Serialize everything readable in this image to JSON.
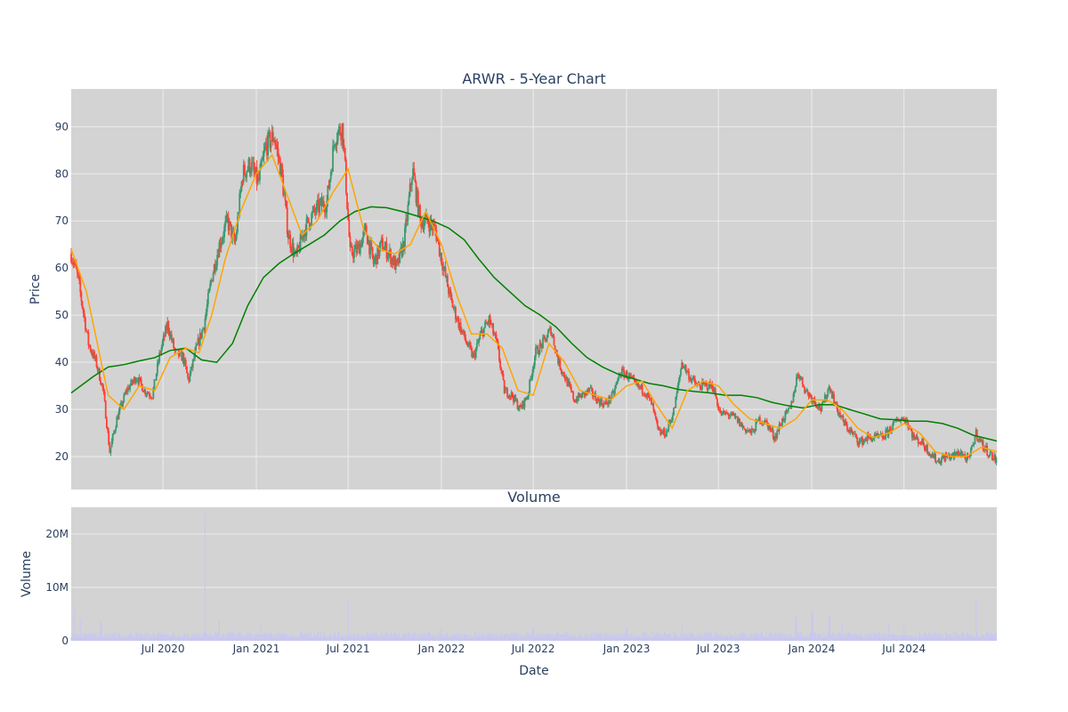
{
  "chart_data": [
    {
      "type": "candlestick",
      "title": "ARWR - 5-Year Chart",
      "xlabel": "Date",
      "ylabel": "Price",
      "x_range": [
        "2020-01-02",
        "2024-12-31"
      ],
      "ylim": [
        13,
        98
      ],
      "y_ticks": [
        20,
        30,
        40,
        50,
        60,
        70,
        80,
        90
      ],
      "x_ticks": [
        {
          "date": "2020-07-01",
          "label": "Jul 2020"
        },
        {
          "date": "2021-01-01",
          "label": "Jan 2021"
        },
        {
          "date": "2021-07-01",
          "label": "Jul 2021"
        },
        {
          "date": "2022-01-01",
          "label": "Jan 2022"
        },
        {
          "date": "2022-07-01",
          "label": "Jul 2022"
        },
        {
          "date": "2023-01-01",
          "label": "Jan 2023"
        },
        {
          "date": "2023-07-01",
          "label": "Jul 2023"
        },
        {
          "date": "2024-01-01",
          "label": "Jan 2024"
        },
        {
          "date": "2024-07-01",
          "label": "Jul 2024"
        }
      ],
      "grid": true,
      "background": "#d3d3d3",
      "colors": {
        "increasing": "#3d9970",
        "decreasing": "#ff4136",
        "ma_short": "#ffa500",
        "ma_long": "#008000"
      },
      "price_path": [
        [
          "2020-01-02",
          63
        ],
        [
          "2020-01-15",
          58
        ],
        [
          "2020-02-05",
          44
        ],
        [
          "2020-02-20",
          40
        ],
        [
          "2020-03-05",
          34
        ],
        [
          "2020-03-18",
          21
        ],
        [
          "2020-04-01",
          28
        ],
        [
          "2020-04-20",
          34
        ],
        [
          "2020-05-10",
          37
        ],
        [
          "2020-05-25",
          34
        ],
        [
          "2020-06-10",
          33
        ],
        [
          "2020-06-25",
          42
        ],
        [
          "2020-07-10",
          48
        ],
        [
          "2020-07-25",
          42
        ],
        [
          "2020-08-10",
          41
        ],
        [
          "2020-08-20",
          36
        ],
        [
          "2020-09-05",
          43
        ],
        [
          "2020-09-20",
          48
        ],
        [
          "2020-10-05",
          58
        ],
        [
          "2020-10-20",
          65
        ],
        [
          "2020-11-05",
          70
        ],
        [
          "2020-11-20",
          65
        ],
        [
          "2020-12-05",
          80
        ],
        [
          "2020-12-20",
          82
        ],
        [
          "2021-01-05",
          78
        ],
        [
          "2021-01-20",
          86
        ],
        [
          "2021-02-05",
          88
        ],
        [
          "2021-02-20",
          80
        ],
        [
          "2021-03-05",
          67
        ],
        [
          "2021-03-20",
          62
        ],
        [
          "2021-04-05",
          68
        ],
        [
          "2021-04-20",
          71
        ],
        [
          "2021-05-05",
          73
        ],
        [
          "2021-05-20",
          74
        ],
        [
          "2021-06-05",
          88
        ],
        [
          "2021-06-20",
          90
        ],
        [
          "2021-07-05",
          63
        ],
        [
          "2021-07-20",
          64
        ],
        [
          "2021-08-05",
          68
        ],
        [
          "2021-08-20",
          61
        ],
        [
          "2021-09-05",
          65
        ],
        [
          "2021-09-20",
          63
        ],
        [
          "2021-10-05",
          60
        ],
        [
          "2021-10-20",
          66
        ],
        [
          "2021-11-05",
          81
        ],
        [
          "2021-11-20",
          70
        ],
        [
          "2021-12-05",
          70
        ],
        [
          "2021-12-20",
          68
        ],
        [
          "2022-01-05",
          60
        ],
        [
          "2022-01-20",
          53
        ],
        [
          "2022-02-05",
          48
        ],
        [
          "2022-02-20",
          44
        ],
        [
          "2022-03-05",
          41
        ],
        [
          "2022-03-20",
          46
        ],
        [
          "2022-04-05",
          49
        ],
        [
          "2022-04-20",
          44
        ],
        [
          "2022-05-05",
          34
        ],
        [
          "2022-05-20",
          33
        ],
        [
          "2022-06-05",
          30
        ],
        [
          "2022-06-20",
          33
        ],
        [
          "2022-07-05",
          42
        ],
        [
          "2022-07-20",
          44
        ],
        [
          "2022-08-05",
          47
        ],
        [
          "2022-08-20",
          40
        ],
        [
          "2022-09-05",
          36
        ],
        [
          "2022-09-20",
          32
        ],
        [
          "2022-10-05",
          33
        ],
        [
          "2022-10-20",
          34
        ],
        [
          "2022-11-05",
          32
        ],
        [
          "2022-11-20",
          31
        ],
        [
          "2022-12-05",
          33
        ],
        [
          "2022-12-20",
          38
        ],
        [
          "2023-01-05",
          37
        ],
        [
          "2023-01-20",
          35
        ],
        [
          "2023-02-05",
          34
        ],
        [
          "2023-02-20",
          31
        ],
        [
          "2023-03-05",
          25
        ],
        [
          "2023-03-20",
          25
        ],
        [
          "2023-04-05",
          30
        ],
        [
          "2023-04-20",
          40
        ],
        [
          "2023-05-05",
          37
        ],
        [
          "2023-05-20",
          35
        ],
        [
          "2023-06-05",
          35
        ],
        [
          "2023-06-20",
          35
        ],
        [
          "2023-07-05",
          29
        ],
        [
          "2023-07-20",
          29
        ],
        [
          "2023-08-05",
          28
        ],
        [
          "2023-08-20",
          26
        ],
        [
          "2023-09-05",
          25
        ],
        [
          "2023-09-20",
          28
        ],
        [
          "2023-10-05",
          27
        ],
        [
          "2023-10-20",
          24
        ],
        [
          "2023-11-05",
          28
        ],
        [
          "2023-11-20",
          30
        ],
        [
          "2023-12-05",
          38
        ],
        [
          "2023-12-20",
          34
        ],
        [
          "2024-01-05",
          32
        ],
        [
          "2024-01-20",
          30
        ],
        [
          "2024-02-05",
          35
        ],
        [
          "2024-02-20",
          30
        ],
        [
          "2024-03-05",
          27
        ],
        [
          "2024-03-20",
          25
        ],
        [
          "2024-04-05",
          23
        ],
        [
          "2024-04-20",
          24
        ],
        [
          "2024-05-05",
          24
        ],
        [
          "2024-05-20",
          24
        ],
        [
          "2024-06-05",
          26
        ],
        [
          "2024-06-20",
          28
        ],
        [
          "2024-07-05",
          28
        ],
        [
          "2024-07-20",
          24
        ],
        [
          "2024-08-05",
          23
        ],
        [
          "2024-08-20",
          21
        ],
        [
          "2024-09-05",
          19
        ],
        [
          "2024-09-20",
          20
        ],
        [
          "2024-10-05",
          20
        ],
        [
          "2024-10-20",
          21
        ],
        [
          "2024-11-05",
          19
        ],
        [
          "2024-11-20",
          25
        ],
        [
          "2024-12-05",
          22
        ],
        [
          "2024-12-31",
          19
        ]
      ],
      "ma_short": [
        [
          "2020-01-02",
          64
        ],
        [
          "2020-02-01",
          55
        ],
        [
          "2020-03-15",
          33
        ],
        [
          "2020-04-15",
          30
        ],
        [
          "2020-05-15",
          35
        ],
        [
          "2020-06-15",
          34
        ],
        [
          "2020-07-15",
          41
        ],
        [
          "2020-08-15",
          43
        ],
        [
          "2020-09-10",
          42
        ],
        [
          "2020-10-05",
          50
        ],
        [
          "2020-11-01",
          62
        ],
        [
          "2020-12-01",
          72
        ],
        [
          "2021-01-01",
          80
        ],
        [
          "2021-02-01",
          84
        ],
        [
          "2021-03-01",
          76
        ],
        [
          "2021-04-01",
          67
        ],
        [
          "2021-05-01",
          70
        ],
        [
          "2021-06-01",
          76
        ],
        [
          "2021-07-01",
          81
        ],
        [
          "2021-08-01",
          68
        ],
        [
          "2021-09-01",
          64
        ],
        [
          "2021-10-01",
          63
        ],
        [
          "2021-11-01",
          65
        ],
        [
          "2021-12-01",
          72
        ],
        [
          "2022-01-01",
          65
        ],
        [
          "2022-02-01",
          54
        ],
        [
          "2022-03-01",
          46
        ],
        [
          "2022-04-01",
          46
        ],
        [
          "2022-05-01",
          43
        ],
        [
          "2022-06-01",
          34
        ],
        [
          "2022-07-01",
          33
        ],
        [
          "2022-08-01",
          44
        ],
        [
          "2022-09-01",
          40
        ],
        [
          "2022-10-01",
          34
        ],
        [
          "2022-11-01",
          33
        ],
        [
          "2022-12-01",
          32
        ],
        [
          "2023-01-01",
          35
        ],
        [
          "2023-02-01",
          36
        ],
        [
          "2023-03-01",
          31
        ],
        [
          "2023-04-01",
          26
        ],
        [
          "2023-05-01",
          34
        ],
        [
          "2023-06-01",
          36
        ],
        [
          "2023-07-01",
          35
        ],
        [
          "2023-08-01",
          31
        ],
        [
          "2023-09-01",
          28
        ],
        [
          "2023-10-01",
          27
        ],
        [
          "2023-11-01",
          26
        ],
        [
          "2023-12-01",
          28
        ],
        [
          "2024-01-01",
          32
        ],
        [
          "2024-02-01",
          32
        ],
        [
          "2024-03-01",
          30
        ],
        [
          "2024-04-01",
          26
        ],
        [
          "2024-05-01",
          24
        ],
        [
          "2024-06-01",
          25
        ],
        [
          "2024-07-01",
          27
        ],
        [
          "2024-08-01",
          25
        ],
        [
          "2024-09-01",
          21
        ],
        [
          "2024-10-01",
          20
        ],
        [
          "2024-11-01",
          20
        ],
        [
          "2024-12-01",
          22
        ],
        [
          "2024-12-31",
          21
        ]
      ],
      "ma_long": [
        [
          "2020-01-02",
          33.5
        ],
        [
          "2020-02-15",
          37
        ],
        [
          "2020-03-15",
          39
        ],
        [
          "2020-04-15",
          39.5
        ],
        [
          "2020-05-15",
          40.3
        ],
        [
          "2020-06-15",
          41
        ],
        [
          "2020-07-15",
          42.5
        ],
        [
          "2020-08-15",
          43
        ],
        [
          "2020-09-15",
          40.5
        ],
        [
          "2020-10-15",
          40
        ],
        [
          "2020-11-15",
          44
        ],
        [
          "2020-12-15",
          52
        ],
        [
          "2021-01-15",
          58
        ],
        [
          "2021-02-15",
          61
        ],
        [
          "2021-03-15",
          63
        ],
        [
          "2021-04-15",
          65
        ],
        [
          "2021-05-15",
          67
        ],
        [
          "2021-06-15",
          70
        ],
        [
          "2021-07-15",
          72
        ],
        [
          "2021-08-15",
          73
        ],
        [
          "2021-09-15",
          72.8
        ],
        [
          "2021-10-15",
          72
        ],
        [
          "2021-11-15",
          71
        ],
        [
          "2021-12-15",
          70
        ],
        [
          "2022-01-15",
          68.5
        ],
        [
          "2022-02-15",
          66
        ],
        [
          "2022-03-15",
          62
        ],
        [
          "2022-04-15",
          58
        ],
        [
          "2022-05-15",
          55
        ],
        [
          "2022-06-15",
          52
        ],
        [
          "2022-07-15",
          50
        ],
        [
          "2022-08-15",
          47.5
        ],
        [
          "2022-09-15",
          44
        ],
        [
          "2022-10-15",
          41
        ],
        [
          "2022-11-15",
          39
        ],
        [
          "2022-12-15",
          37.5
        ],
        [
          "2023-01-15",
          36.5
        ],
        [
          "2023-02-15",
          35.5
        ],
        [
          "2023-03-15",
          35
        ],
        [
          "2023-04-15",
          34.2
        ],
        [
          "2023-05-15",
          33.8
        ],
        [
          "2023-06-15",
          33.5
        ],
        [
          "2023-07-15",
          33
        ],
        [
          "2023-08-15",
          33
        ],
        [
          "2023-09-15",
          32.5
        ],
        [
          "2023-10-15",
          31.5
        ],
        [
          "2023-11-15",
          30.8
        ],
        [
          "2023-12-15",
          30.3
        ],
        [
          "2024-01-15",
          31
        ],
        [
          "2024-02-15",
          31
        ],
        [
          "2024-03-15",
          30
        ],
        [
          "2024-04-15",
          29
        ],
        [
          "2024-05-15",
          28
        ],
        [
          "2024-06-15",
          27.8
        ],
        [
          "2024-07-15",
          27.5
        ],
        [
          "2024-08-15",
          27.5
        ],
        [
          "2024-09-15",
          27
        ],
        [
          "2024-10-15",
          26
        ],
        [
          "2024-11-15",
          24.5
        ],
        [
          "2024-12-31",
          23.3
        ]
      ]
    },
    {
      "type": "bar",
      "title": "Volume",
      "xlabel": "Date",
      "ylabel": "Volume",
      "ylim": [
        0,
        25000000
      ],
      "y_ticks": [
        {
          "value": 0,
          "label": "0"
        },
        {
          "value": 10000000,
          "label": "10M"
        },
        {
          "value": 20000000,
          "label": "20M"
        }
      ],
      "bar_color": "#c8c8f0",
      "baseline": 1200000,
      "spikes": [
        [
          "2020-01-08",
          6500000
        ],
        [
          "2020-01-20",
          4000000
        ],
        [
          "2020-03-01",
          3500000
        ],
        [
          "2020-09-22",
          24000000
        ],
        [
          "2020-10-20",
          4000000
        ],
        [
          "2021-01-10",
          3000000
        ],
        [
          "2021-07-01",
          7500000
        ],
        [
          "2022-01-01",
          2500000
        ],
        [
          "2022-07-01",
          2500000
        ],
        [
          "2023-01-01",
          2500000
        ],
        [
          "2023-04-20",
          3500000
        ],
        [
          "2023-12-01",
          4500000
        ],
        [
          "2024-01-02",
          5500000
        ],
        [
          "2024-02-05",
          4500000
        ],
        [
          "2024-03-01",
          3500000
        ],
        [
          "2024-06-01",
          3000000
        ],
        [
          "2024-07-01",
          3000000
        ],
        [
          "2024-11-20",
          8000000
        ]
      ]
    }
  ]
}
